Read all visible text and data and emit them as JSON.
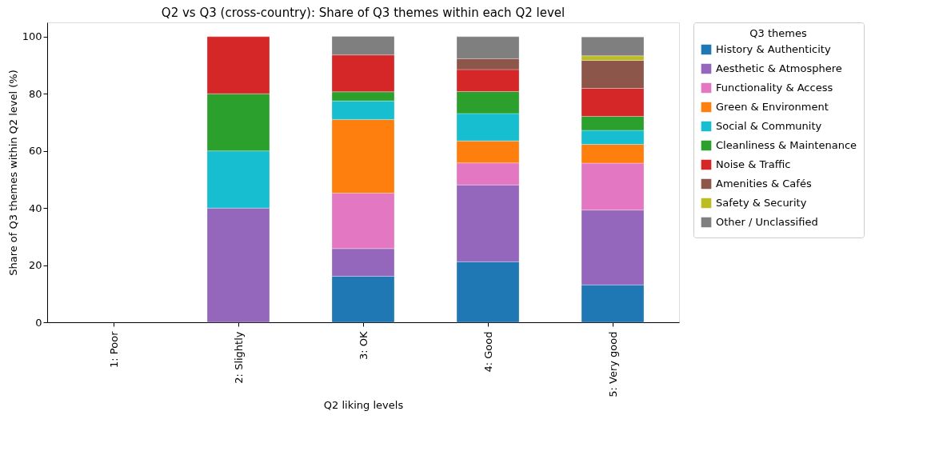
{
  "chart_data": {
    "type": "bar",
    "stacked": true,
    "title": "Q2 vs Q3 (cross-country): Share of Q3 themes within each Q2 level",
    "xlabel": "Q2 liking levels",
    "ylabel": "Share of Q3 themes within Q2 level (%)",
    "legend_title": "Q3 themes",
    "legend": "top right",
    "grid": false,
    "categories": [
      "1: Poor",
      "2: Slightly",
      "3: OK",
      "4: Good",
      "5: Very good"
    ],
    "ylim": [
      0,
      105
    ],
    "yticks": [
      0,
      20,
      40,
      60,
      80,
      100
    ],
    "series": [
      {
        "name": "History & Authenticity",
        "color": "#1f77b4",
        "values": [
          null,
          0,
          16.1,
          21.2,
          13.1
        ]
      },
      {
        "name": "Aesthetic & Atmosphere",
        "color": "#9467bd",
        "values": [
          null,
          40,
          9.7,
          26.9,
          26.2
        ]
      },
      {
        "name": "Functionality & Access",
        "color": "#e377c2",
        "values": [
          null,
          0,
          19.4,
          7.7,
          16.4
        ]
      },
      {
        "name": "Green & Environment",
        "color": "#ff7f0e",
        "values": [
          null,
          0,
          25.8,
          7.7,
          6.6
        ]
      },
      {
        "name": "Social & Community",
        "color": "#17becf",
        "values": [
          null,
          20,
          6.5,
          9.6,
          4.9
        ]
      },
      {
        "name": "Cleanliness & Maintenance",
        "color": "#2ca02c",
        "values": [
          null,
          20,
          3.2,
          7.7,
          4.9
        ]
      },
      {
        "name": "Noise & Traffic",
        "color": "#d62728",
        "values": [
          null,
          20,
          12.9,
          7.7,
          9.8
        ]
      },
      {
        "name": "Amenities & Cafés",
        "color": "#8c564b",
        "values": [
          null,
          0,
          0,
          3.8,
          9.8
        ]
      },
      {
        "name": "Safety & Security",
        "color": "#bcbd22",
        "values": [
          null,
          0,
          0,
          0,
          1.6
        ]
      },
      {
        "name": "Other / Unclassified",
        "color": "#7f7f7f",
        "values": [
          null,
          0,
          6.5,
          7.7,
          6.6
        ]
      }
    ]
  }
}
